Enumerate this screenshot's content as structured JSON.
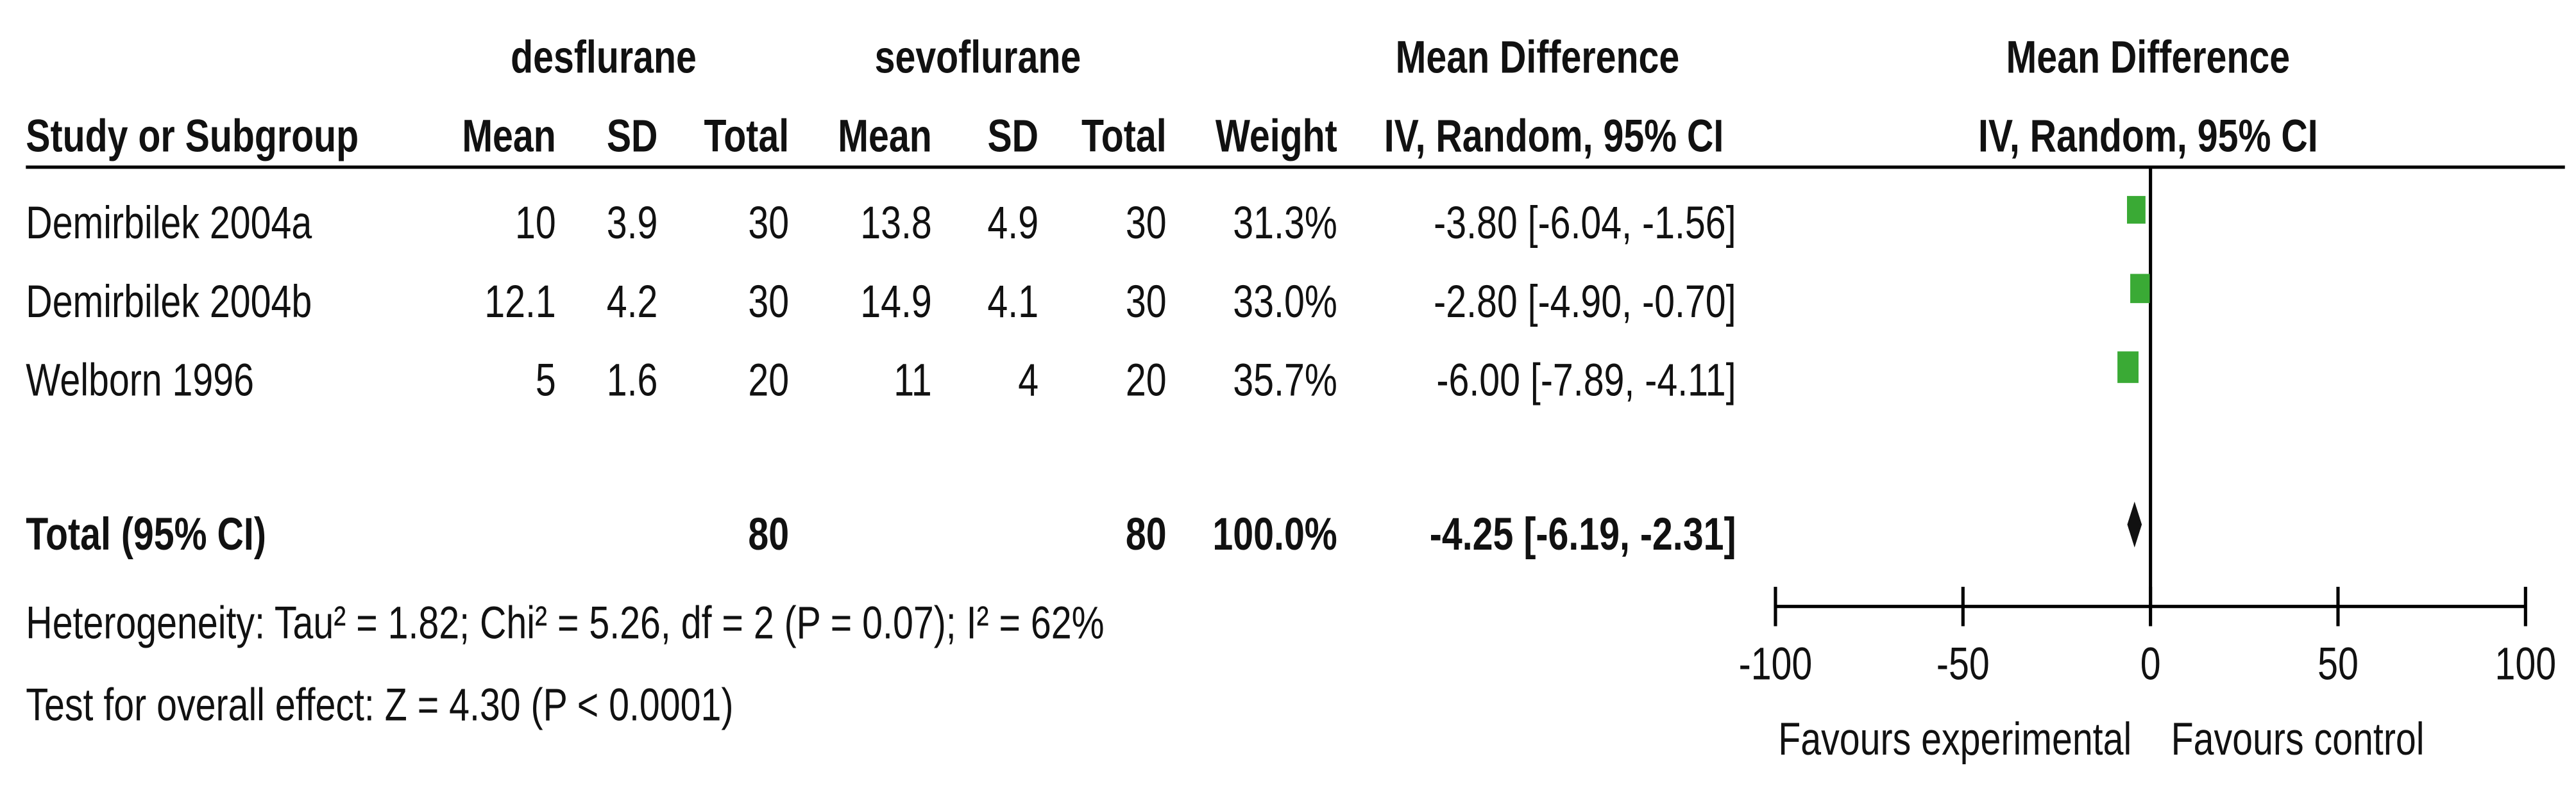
{
  "chart_data": {
    "type": "forest",
    "group_headers": [
      "desflurane",
      "sevoflurane"
    ],
    "effect_header": "Mean Difference",
    "effect_subheader": "IV, Random, 95% CI",
    "plot_header": "Mean Difference",
    "plot_subheader": "IV, Random, 95% CI",
    "columns": [
      "Study or Subgroup",
      "Mean",
      "SD",
      "Total",
      "Mean",
      "SD",
      "Total",
      "Weight"
    ],
    "categories": [
      "Demirbilek 2004a",
      "Demirbilek 2004b",
      "Welborn 1996"
    ],
    "exp_mean": [
      10,
      12.1,
      5
    ],
    "exp_sd": [
      3.9,
      4.2,
      1.6
    ],
    "exp_total": [
      30,
      30,
      20
    ],
    "ctrl_mean": [
      13.8,
      14.9,
      11
    ],
    "ctrl_sd": [
      4.9,
      4.1,
      4
    ],
    "ctrl_total": [
      30,
      30,
      20
    ],
    "weights": [
      31.3,
      33.0,
      35.7
    ],
    "weight_labels": [
      "31.3%",
      "33.0%",
      "35.7%"
    ],
    "values": [
      -3.8,
      -2.8,
      -6.0
    ],
    "lower": [
      -6.04,
      -4.9,
      -7.89
    ],
    "upper": [
      -1.56,
      -0.7,
      -4.11
    ],
    "value_labels": [
      "-3.80 [-6.04, -1.56]",
      "-2.80 [-4.90, -0.70]",
      "-6.00 [-7.89, -4.11]"
    ],
    "total": {
      "name": "Total (95% CI)",
      "exp_total": 80,
      "ctrl_total": 80,
      "weight": 100.0,
      "weight_label": "100.0%",
      "value": -4.25,
      "lower": -6.19,
      "upper": -2.31,
      "value_label": "-4.25 [-6.19, -2.31]"
    },
    "heterogeneity": "Heterogeneity: Tau² = 1.82; Chi² = 5.26, df = 2 (P = 0.07); I² = 62%",
    "overall_effect": "Test for overall effect: Z = 4.30 (P < 0.0001)",
    "xlim": [
      -100,
      100
    ],
    "xticks": [
      -100,
      -50,
      0,
      50,
      100
    ],
    "x_label_left": "Favours experimental",
    "x_label_right": "Favours control",
    "color": "#3aaa35"
  }
}
